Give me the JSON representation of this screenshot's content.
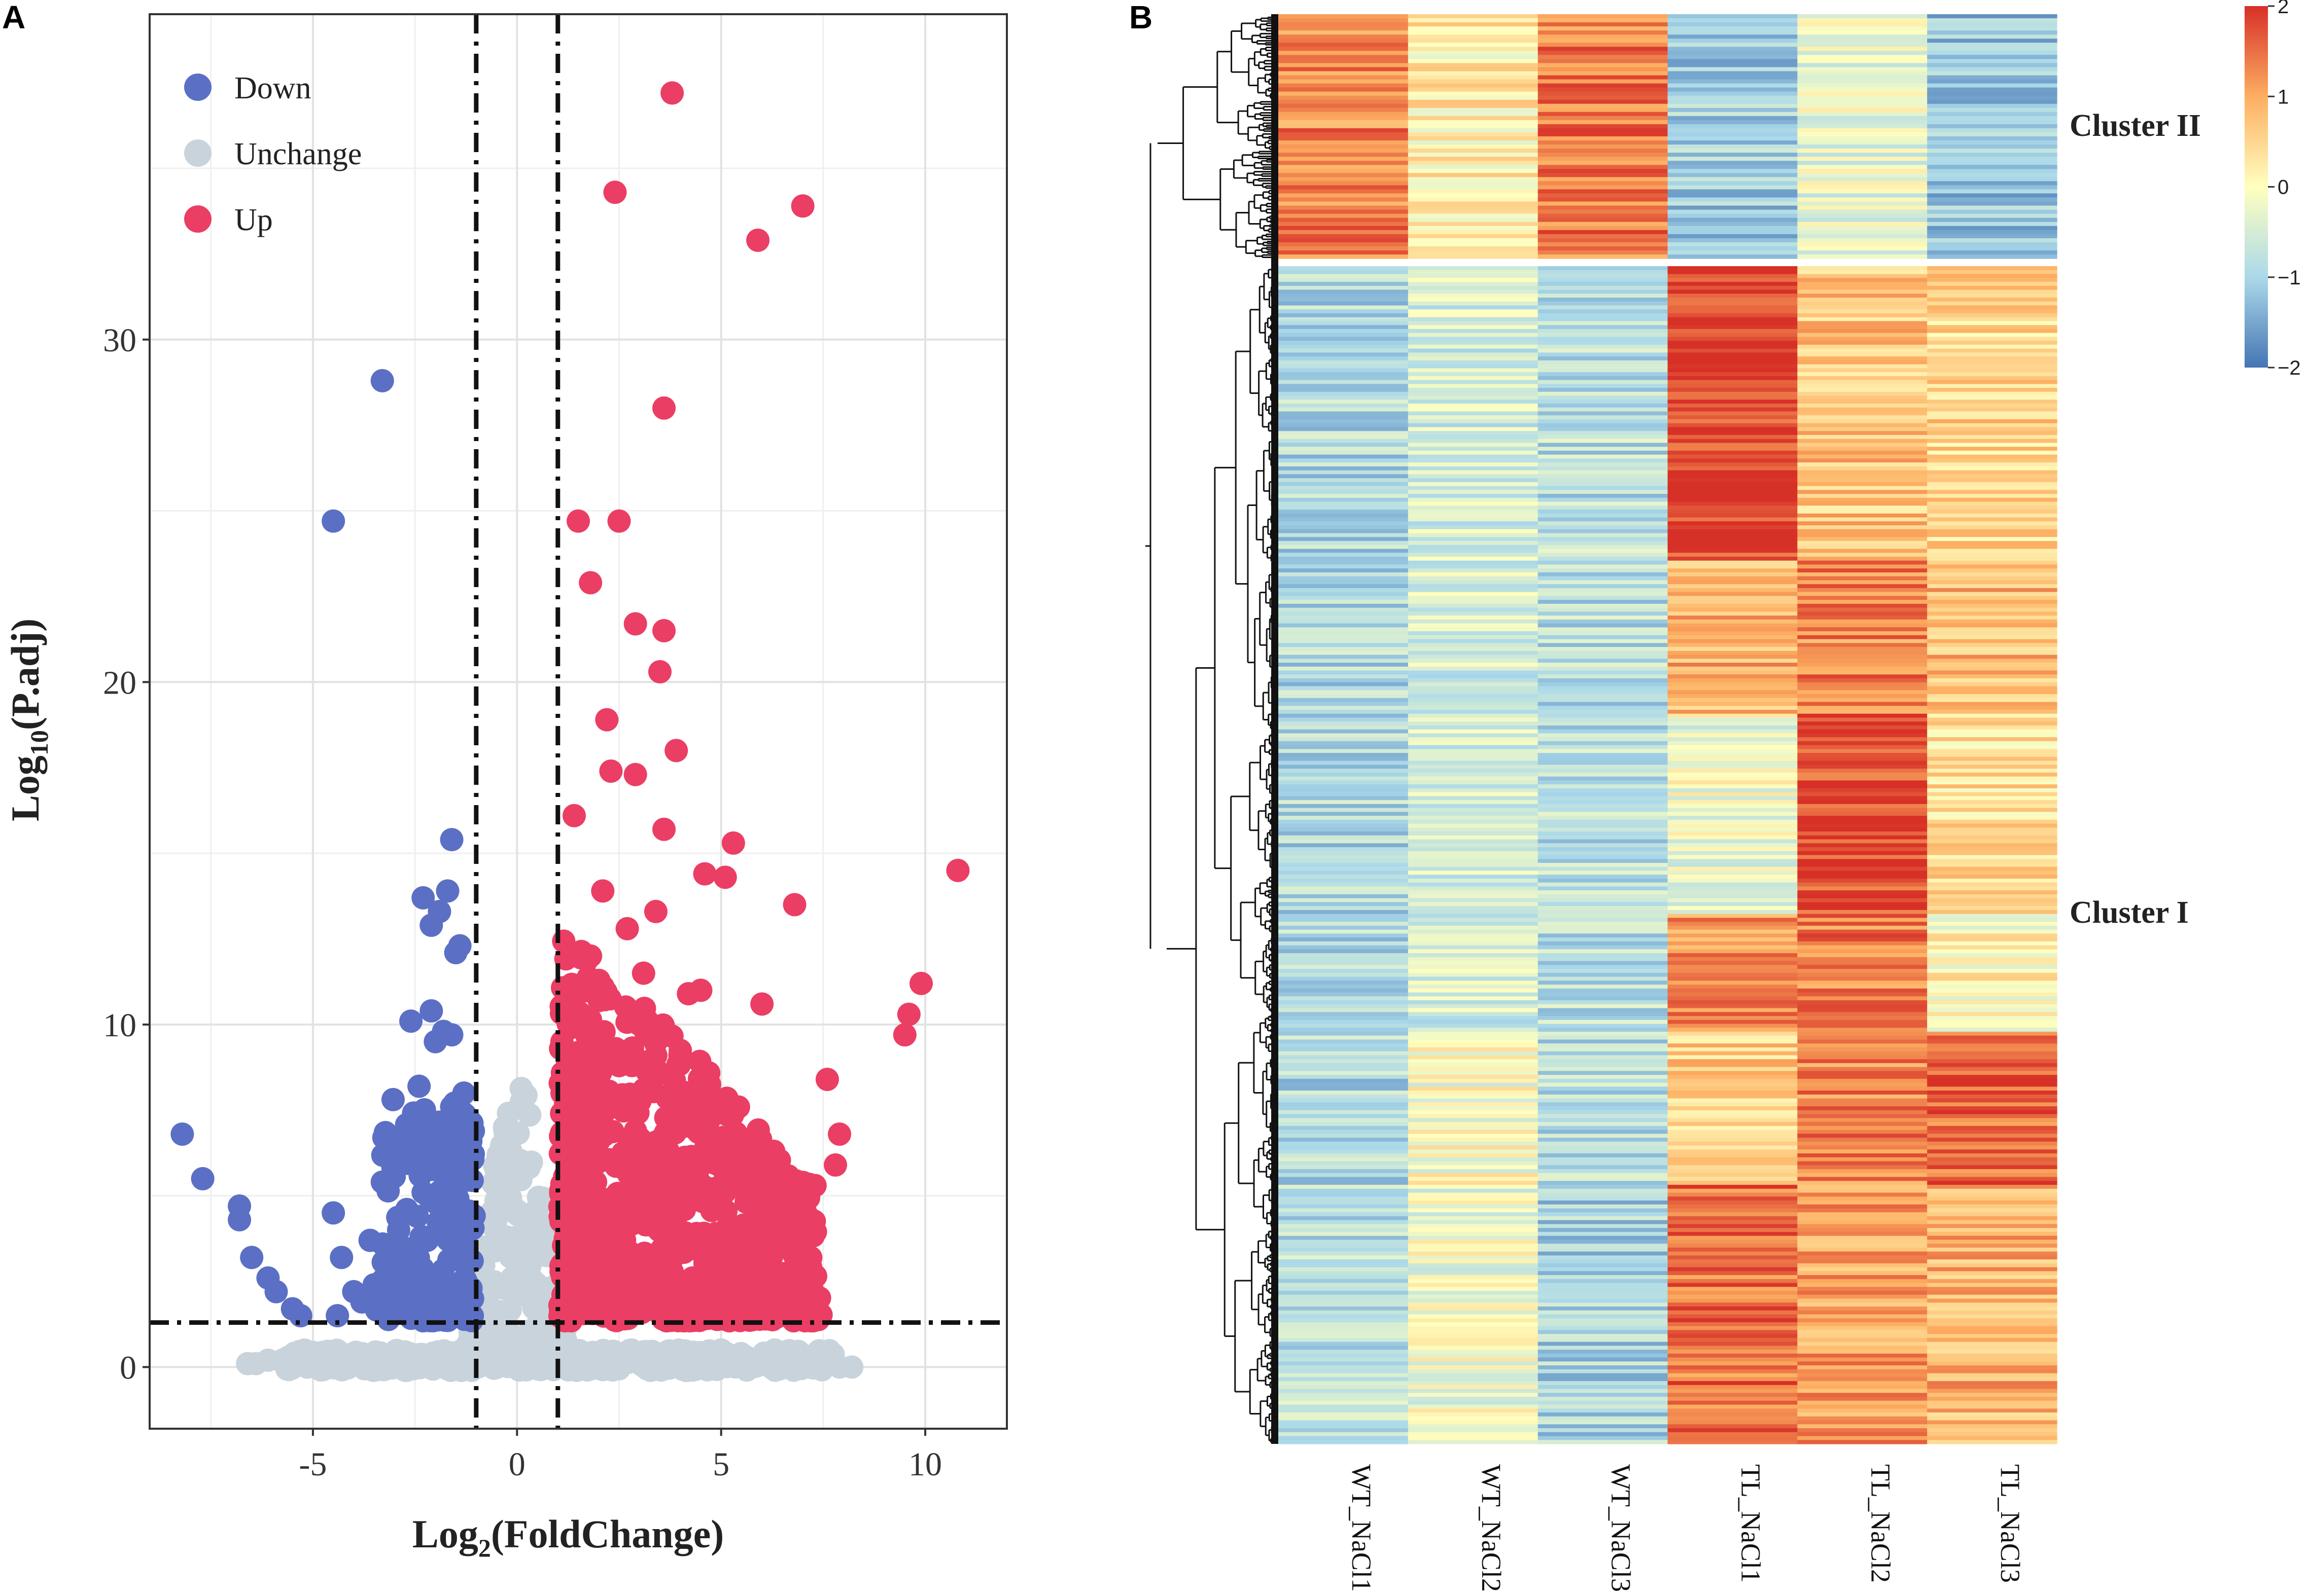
{
  "panels": {
    "a_label": "A",
    "b_label": "B"
  },
  "chart_data": [
    {
      "type": "scatter",
      "title": "",
      "xlabel_main": "Log",
      "xlabel_sub": "2",
      "xlabel_rest": "(FoldChange)",
      "ylabel_main": "Log",
      "ylabel_sub": "10",
      "ylabel_rest": "(P.adj)",
      "xlim": [
        -9,
        12
      ],
      "ylim": [
        -1.8,
        39.5
      ],
      "xticks": [
        -5,
        0,
        5,
        10
      ],
      "yticks": [
        0,
        10,
        20,
        30
      ],
      "thresholds": {
        "log2fc": [
          -1,
          1
        ],
        "neg_log10_padj": 1.3
      },
      "legend": {
        "position": "top-left",
        "entries": [
          {
            "name": "Down",
            "color": "#5B6FC4"
          },
          {
            "name": "Unchange",
            "color": "#C9D3DB"
          },
          {
            "name": "Up",
            "color": "#EB3E64"
          }
        ]
      },
      "series": [
        {
          "name": "Down",
          "color": "#5B6FC4",
          "points": [
            [
              -3.3,
              28.8
            ],
            [
              -4.5,
              24.7
            ],
            [
              -1.6,
              15.4
            ],
            [
              -1.7,
              13.9
            ],
            [
              -2.3,
              13.7
            ],
            [
              -1.9,
              13.3
            ],
            [
              -2.1,
              12.9
            ],
            [
              -1.4,
              12.3
            ],
            [
              -1.5,
              12.1
            ],
            [
              -2.1,
              10.4
            ],
            [
              -2.6,
              10.1
            ],
            [
              -1.8,
              9.8
            ],
            [
              -1.6,
              9.7
            ],
            [
              -2.0,
              9.5
            ],
            [
              -2.4,
              8.2
            ],
            [
              -1.3,
              8.0
            ],
            [
              -1.6,
              7.6
            ],
            [
              -8.2,
              6.8
            ],
            [
              -2.5,
              6.7
            ],
            [
              -1.8,
              6.6
            ],
            [
              -7.7,
              5.5
            ],
            [
              -2.2,
              6.0
            ],
            [
              -3.3,
              5.4
            ],
            [
              -6.8,
              4.7
            ],
            [
              -4.5,
              4.5
            ],
            [
              -6.8,
              4.3
            ],
            [
              -2.9,
              4.0
            ],
            [
              -2.2,
              3.7
            ],
            [
              -6.5,
              3.2
            ],
            [
              -4.3,
              3.2
            ],
            [
              -3.1,
              2.9
            ],
            [
              -2.6,
              2.2
            ],
            [
              -6.1,
              2.6
            ],
            [
              -5.9,
              2.2
            ],
            [
              -5.5,
              1.7
            ],
            [
              -5.3,
              1.5
            ],
            [
              -4.4,
              1.5
            ],
            [
              -3.8,
              1.9
            ],
            [
              -3.5,
              2.4
            ],
            [
              -2.8,
              3.5
            ],
            [
              -2.0,
              4.8
            ],
            [
              -1.5,
              5.3
            ],
            [
              -1.2,
              6.9
            ],
            [
              -1.8,
              4.1
            ],
            [
              -2.4,
              3.0
            ],
            [
              -3.0,
              2.6
            ],
            [
              -4.0,
              2.2
            ],
            [
              -1.3,
              2.0
            ],
            [
              -1.5,
              3.6
            ],
            [
              -1.9,
              2.6
            ],
            [
              -2.7,
              4.6
            ],
            [
              -3.6,
              3.7
            ],
            [
              -1.1,
              3.1
            ],
            [
              -1.7,
              5.8
            ],
            [
              -2.3,
              5.1
            ],
            [
              -1.4,
              4.4
            ],
            [
              -2.0,
              2.0
            ],
            [
              -2.6,
              1.8
            ],
            [
              -3.2,
              1.7
            ],
            [
              -1.2,
              1.6
            ]
          ]
        },
        {
          "name": "Up",
          "color": "#EB3E64",
          "points": [
            [
              3.8,
              37.2
            ],
            [
              2.4,
              34.3
            ],
            [
              7.0,
              33.9
            ],
            [
              5.9,
              32.9
            ],
            [
              3.6,
              28.0
            ],
            [
              1.5,
              24.7
            ],
            [
              2.5,
              24.7
            ],
            [
              1.8,
              22.9
            ],
            [
              2.9,
              21.7
            ],
            [
              3.6,
              21.5
            ],
            [
              3.5,
              20.3
            ],
            [
              2.2,
              18.9
            ],
            [
              3.9,
              18.0
            ],
            [
              2.3,
              17.4
            ],
            [
              2.9,
              17.3
            ],
            [
              1.4,
              16.1
            ],
            [
              3.6,
              15.7
            ],
            [
              5.3,
              15.3
            ],
            [
              10.8,
              14.5
            ],
            [
              4.6,
              14.4
            ],
            [
              5.1,
              14.3
            ],
            [
              6.8,
              13.5
            ],
            [
              3.4,
              13.3
            ],
            [
              9.9,
              11.2
            ],
            [
              4.2,
              10.9
            ],
            [
              4.5,
              11.0
            ],
            [
              6.0,
              10.6
            ],
            [
              9.6,
              10.3
            ],
            [
              9.5,
              9.7
            ],
            [
              7.6,
              8.4
            ],
            [
              7.9,
              6.8
            ],
            [
              7.8,
              5.9
            ],
            [
              7.3,
              5.3
            ],
            [
              6.1,
              5.6
            ],
            [
              5.5,
              5.8
            ],
            [
              6.5,
              4.4
            ],
            [
              6.9,
              3.5
            ],
            [
              5.8,
              4.1
            ],
            [
              5.2,
              3.2
            ],
            [
              4.4,
              3.9
            ],
            [
              6.3,
              2.0
            ],
            [
              5.8,
              2.4
            ],
            [
              4.8,
              2.1
            ],
            [
              4.3,
              2.6
            ],
            [
              7.1,
              2.9
            ],
            [
              1.3,
              9.9
            ],
            [
              1.8,
              12.0
            ],
            [
              2.1,
              13.9
            ],
            [
              2.7,
              12.8
            ],
            [
              3.1,
              11.5
            ],
            [
              1.6,
              8.2
            ],
            [
              2.5,
              8.8
            ],
            [
              3.4,
              9.1
            ],
            [
              4.0,
              7.7
            ],
            [
              4.7,
              7.2
            ],
            [
              1.4,
              6.0
            ],
            [
              2.0,
              6.6
            ],
            [
              2.9,
              6.9
            ],
            [
              3.7,
              6.3
            ],
            [
              5.0,
              6.1
            ],
            [
              1.2,
              4.6
            ],
            [
              1.9,
              4.3
            ],
            [
              2.6,
              5.0
            ],
            [
              3.3,
              4.8
            ],
            [
              4.1,
              4.6
            ],
            [
              1.1,
              3.0
            ],
            [
              1.7,
              2.6
            ],
            [
              2.4,
              3.2
            ],
            [
              3.0,
              2.8
            ],
            [
              3.8,
              3.4
            ],
            [
              1.5,
              1.8
            ],
            [
              2.2,
              1.7
            ],
            [
              3.6,
              2.0
            ],
            [
              4.6,
              1.8
            ],
            [
              5.6,
              1.6
            ]
          ]
        }
      ]
    },
    {
      "type": "heatmap",
      "columns": [
        "WT_NaCl1",
        "WT_NaCl2",
        "WT_NaCl3",
        "TL_NaCl1",
        "TL_NaCl2",
        "TL_NaCl3"
      ],
      "row_groups": [
        {
          "name": "Cluster II",
          "rows": 60,
          "pattern": [
            1.3,
            0.2,
            1.4,
            -1.1,
            -0.3,
            -1.2
          ]
        },
        {
          "name": "Cluster I",
          "rows": 300,
          "pattern": [
            -0.9,
            -0.5,
            -0.8,
            1.4,
            1.0,
            0.7
          ]
        }
      ],
      "colorbar": {
        "min": -2,
        "max": 2,
        "ticks": [
          "2",
          "1",
          "0",
          "−1",
          "−2"
        ]
      }
    }
  ]
}
